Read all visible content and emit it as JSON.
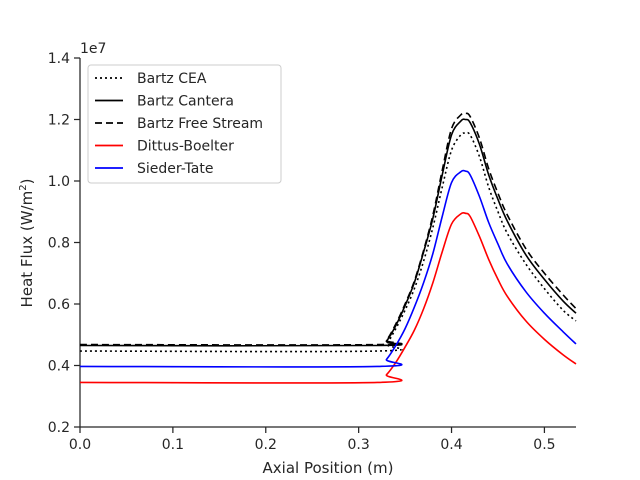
{
  "chart_data": {
    "type": "line",
    "title": "",
    "xlabel": "Axial Position (m)",
    "ylabel": "Heat Flux (W/m²)",
    "ylabel_base": "Heat Flux (W/m",
    "ylabel_sup": "2",
    "ylabel_tail": ")",
    "y_offset_label": "1e7",
    "y_scale_factor": 10000000,
    "xlim": [
      0.0,
      0.534
    ],
    "ylim": [
      0.2,
      1.4
    ],
    "x_ticks": [
      0.0,
      0.1,
      0.2,
      0.3,
      0.4,
      0.5
    ],
    "x_tick_labels": [
      "0.0",
      "0.1",
      "0.2",
      "0.3",
      "0.4",
      "0.5"
    ],
    "y_ticks": [
      0.2,
      0.4,
      0.6,
      0.8,
      1.0,
      1.2,
      1.4
    ],
    "y_tick_labels": [
      "0.2",
      "0.4",
      "0.6",
      "0.8",
      "1.0",
      "1.2",
      "1.4"
    ],
    "grid": false,
    "legend_position": "top-left",
    "x": [
      0.0,
      0.32,
      0.33,
      0.34,
      0.35,
      0.36,
      0.37,
      0.38,
      0.39,
      0.4,
      0.41,
      0.415,
      0.42,
      0.43,
      0.44,
      0.45,
      0.46,
      0.48,
      0.5,
      0.52,
      0.534
    ],
    "series": [
      {
        "name": "Bartz CEA",
        "color": "#000000",
        "dash": "dotted",
        "values": [
          0.447,
          0.447,
          0.47,
          0.52,
          0.58,
          0.65,
          0.74,
          0.85,
          0.98,
          1.1,
          1.15,
          1.155,
          1.15,
          1.08,
          0.98,
          0.9,
          0.83,
          0.73,
          0.65,
          0.58,
          0.545
        ]
      },
      {
        "name": "Bartz Cantera",
        "color": "#000000",
        "dash": "solid",
        "values": [
          0.465,
          0.465,
          0.48,
          0.53,
          0.595,
          0.67,
          0.77,
          0.88,
          1.02,
          1.15,
          1.195,
          1.2,
          1.19,
          1.12,
          1.02,
          0.94,
          0.87,
          0.76,
          0.68,
          0.61,
          0.57
        ]
      },
      {
        "name": "Bartz Free Stream",
        "color": "#000000",
        "dash": "dashed",
        "values": [
          0.468,
          0.468,
          0.483,
          0.535,
          0.6,
          0.675,
          0.775,
          0.89,
          1.035,
          1.17,
          1.215,
          1.22,
          1.21,
          1.14,
          1.04,
          0.96,
          0.89,
          0.78,
          0.7,
          0.63,
          0.585
        ]
      },
      {
        "name": "Dittus-Boelter",
        "color": "#ff0000",
        "dash": "solid",
        "values": [
          0.345,
          0.345,
          0.37,
          0.41,
          0.46,
          0.515,
          0.585,
          0.67,
          0.77,
          0.86,
          0.893,
          0.895,
          0.885,
          0.82,
          0.745,
          0.68,
          0.625,
          0.545,
          0.485,
          0.435,
          0.405
        ]
      },
      {
        "name": "Sieder-Tate",
        "color": "#0000ff",
        "dash": "solid",
        "values": [
          0.397,
          0.397,
          0.42,
          0.465,
          0.52,
          0.59,
          0.67,
          0.765,
          0.885,
          0.995,
          1.03,
          1.032,
          1.02,
          0.95,
          0.865,
          0.795,
          0.73,
          0.64,
          0.57,
          0.51,
          0.47
        ]
      }
    ]
  }
}
